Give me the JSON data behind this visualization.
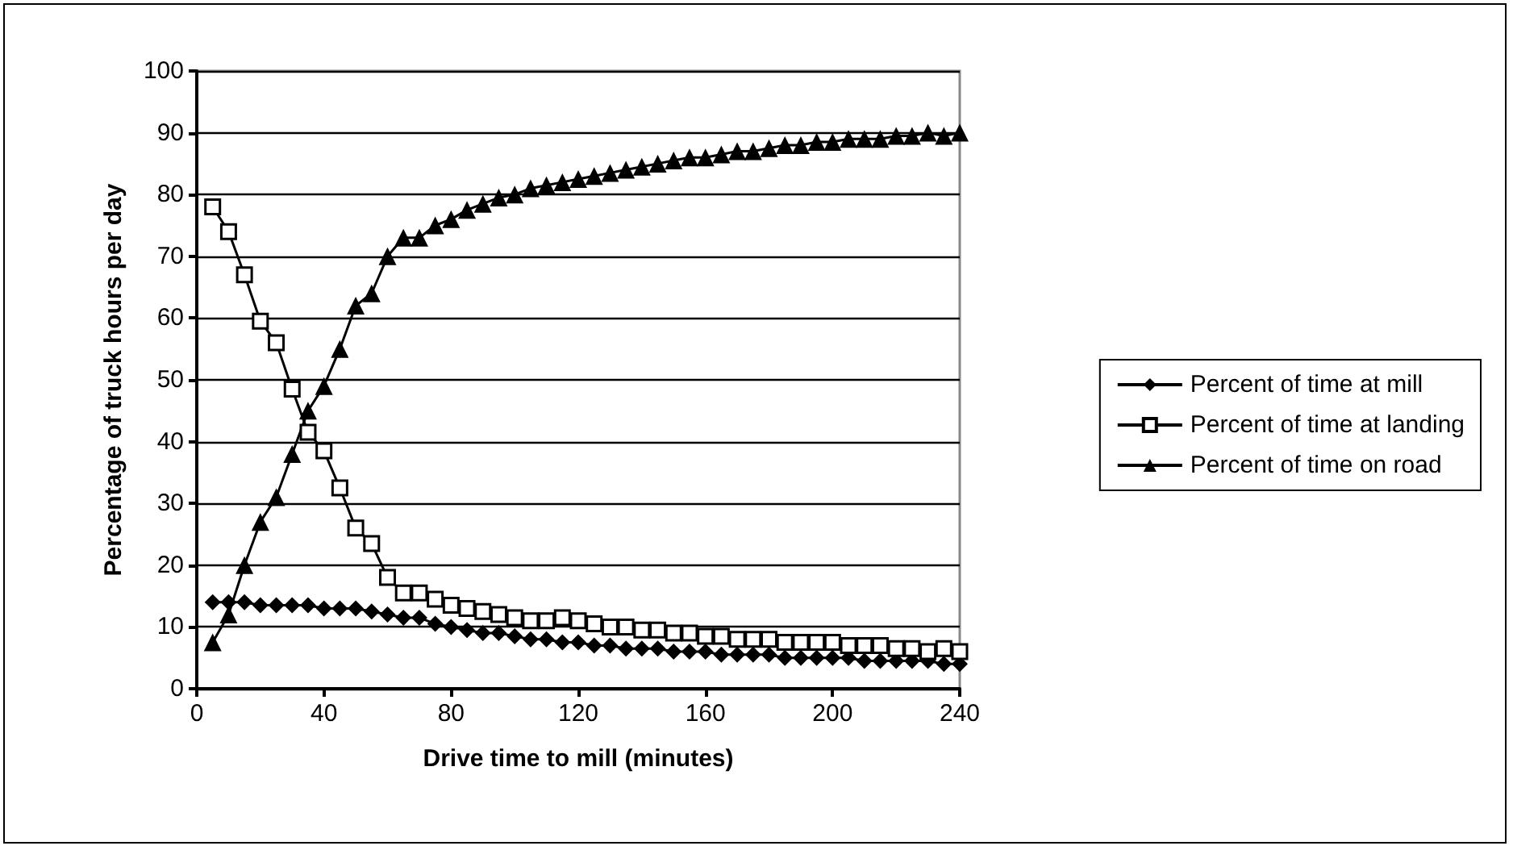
{
  "chart_data": {
    "type": "line",
    "xlabel": "Drive time to mill (minutes)",
    "ylabel": "Percentage of truck hours per day",
    "x": [
      5,
      10,
      15,
      20,
      25,
      30,
      35,
      40,
      45,
      50,
      55,
      60,
      65,
      70,
      75,
      80,
      85,
      90,
      95,
      100,
      105,
      110,
      115,
      120,
      125,
      130,
      135,
      140,
      145,
      150,
      155,
      160,
      165,
      170,
      175,
      180,
      185,
      190,
      195,
      200,
      205,
      210,
      215,
      220,
      225,
      230,
      235,
      240
    ],
    "series": [
      {
        "name": "Percent of time at mill",
        "color": "#000000",
        "marker": "diamond",
        "values": [
          14,
          14,
          14,
          13.5,
          13.5,
          13.5,
          13.5,
          13,
          13,
          13,
          12.5,
          12,
          11.5,
          11.5,
          10.5,
          10,
          9.5,
          9,
          9,
          8.5,
          8,
          8,
          7.5,
          7.5,
          7,
          7,
          6.5,
          6.5,
          6.5,
          6,
          6,
          6,
          5.5,
          5.5,
          5.5,
          5.5,
          5,
          5,
          5,
          5,
          5,
          4.5,
          4.5,
          4.5,
          4.5,
          4.5,
          4,
          4
        ]
      },
      {
        "name": "Percent of time at landing",
        "color": "#000000",
        "marker": "square",
        "values": [
          78,
          74,
          67,
          59.5,
          56,
          48.5,
          41.5,
          38.5,
          32.5,
          26,
          23.5,
          18,
          15.5,
          15.5,
          14.5,
          13.5,
          13,
          12.5,
          12,
          11.5,
          11,
          11,
          11.5,
          11,
          10.5,
          10,
          10,
          9.5,
          9.5,
          9,
          9,
          8.5,
          8.5,
          8,
          8,
          8,
          7.5,
          7.5,
          7.5,
          7.5,
          7,
          7,
          7,
          6.5,
          6.5,
          6,
          6.5,
          6
        ]
      },
      {
        "name": "Percent of time on road",
        "color": "#000000",
        "marker": "triangle",
        "values": [
          7.5,
          12,
          20,
          27,
          31,
          38,
          45,
          49,
          55,
          62,
          64,
          70,
          73,
          73,
          75,
          76,
          77.5,
          78.5,
          79.5,
          80,
          81,
          81.5,
          82,
          82.5,
          83,
          83.5,
          84,
          84.5,
          85,
          85.5,
          86,
          86,
          86.5,
          87,
          87,
          87.5,
          88,
          88,
          88.5,
          88.5,
          89,
          89,
          89,
          89.5,
          89.5,
          90,
          89.5,
          90
        ]
      }
    ],
    "xlim": [
      0,
      240
    ],
    "xticks": [
      0,
      40,
      80,
      120,
      160,
      200,
      240
    ],
    "ylim": [
      0,
      100
    ],
    "yticks": [
      0,
      10,
      20,
      30,
      40,
      50,
      60,
      70,
      80,
      90,
      100
    ],
    "grid": "y",
    "legend": "right"
  }
}
